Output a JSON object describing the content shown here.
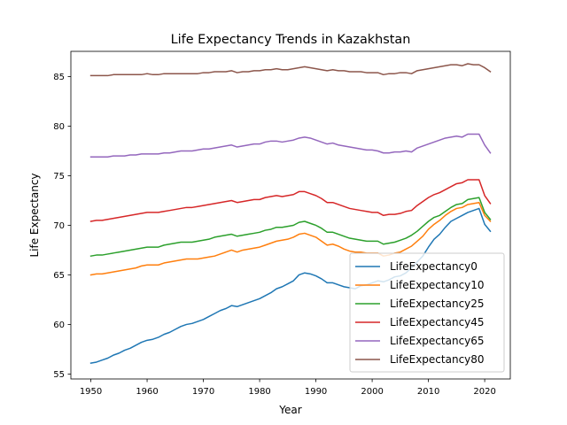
{
  "chart_data": {
    "type": "line",
    "title": "Life Expectancy Trends in Kazakhstan",
    "xlabel": "Year",
    "ylabel": "Life Expectancy",
    "xlim": [
      1946.45,
      2024.55
    ],
    "ylim": [
      54.5,
      87.55
    ],
    "xticks": [
      1950,
      1960,
      1970,
      1980,
      1990,
      2000,
      2010,
      2020
    ],
    "yticks": [
      55,
      60,
      65,
      70,
      75,
      80,
      85
    ],
    "legend_position": "lower-right",
    "grid": false,
    "x": [
      1950,
      1951,
      1952,
      1953,
      1954,
      1955,
      1956,
      1957,
      1958,
      1959,
      1960,
      1961,
      1962,
      1963,
      1964,
      1965,
      1966,
      1967,
      1968,
      1969,
      1970,
      1971,
      1972,
      1973,
      1974,
      1975,
      1976,
      1977,
      1978,
      1979,
      1980,
      1981,
      1982,
      1983,
      1984,
      1985,
      1986,
      1987,
      1988,
      1989,
      1990,
      1991,
      1992,
      1993,
      1994,
      1995,
      1996,
      1997,
      1998,
      1999,
      2000,
      2001,
      2002,
      2003,
      2004,
      2005,
      2006,
      2007,
      2008,
      2009,
      2010,
      2011,
      2012,
      2013,
      2014,
      2015,
      2016,
      2017,
      2018,
      2019,
      2020,
      2021
    ],
    "series": [
      {
        "name": "LifeExpectancy0",
        "color": "#1f77b4",
        "values": [
          56.1,
          56.2,
          56.4,
          56.6,
          56.9,
          57.1,
          57.4,
          57.6,
          57.9,
          58.2,
          58.4,
          58.5,
          58.7,
          59.0,
          59.2,
          59.5,
          59.8,
          60.0,
          60.1,
          60.3,
          60.5,
          60.8,
          61.1,
          61.4,
          61.6,
          61.9,
          61.8,
          62.0,
          62.2,
          62.4,
          62.6,
          62.9,
          63.2,
          63.6,
          63.8,
          64.1,
          64.4,
          65.0,
          65.2,
          65.1,
          64.9,
          64.6,
          64.2,
          64.2,
          64.0,
          63.8,
          63.7,
          63.6,
          63.9,
          64.0,
          64.2,
          64.4,
          64.3,
          64.5,
          64.8,
          64.9,
          65.2,
          65.7,
          66.3,
          66.9,
          67.8,
          68.6,
          69.1,
          69.8,
          70.4,
          70.7,
          71.0,
          71.3,
          71.5,
          71.7,
          70.1,
          69.4
        ]
      },
      {
        "name": "LifeExpectancy10",
        "color": "#ff7f0e",
        "values": [
          65.0,
          65.1,
          65.1,
          65.2,
          65.3,
          65.4,
          65.5,
          65.6,
          65.7,
          65.9,
          66.0,
          66.0,
          66.0,
          66.2,
          66.3,
          66.4,
          66.5,
          66.6,
          66.6,
          66.6,
          66.7,
          66.8,
          66.9,
          67.1,
          67.3,
          67.5,
          67.3,
          67.5,
          67.6,
          67.7,
          67.8,
          68.0,
          68.2,
          68.4,
          68.5,
          68.6,
          68.8,
          69.1,
          69.2,
          69.0,
          68.8,
          68.4,
          68.0,
          68.1,
          67.9,
          67.6,
          67.4,
          67.3,
          67.3,
          67.2,
          67.2,
          67.2,
          66.9,
          67.0,
          67.2,
          67.3,
          67.6,
          67.9,
          68.4,
          68.9,
          69.6,
          70.1,
          70.5,
          71.0,
          71.4,
          71.7,
          71.8,
          72.1,
          72.2,
          72.3,
          71.0,
          70.4
        ]
      },
      {
        "name": "LifeExpectancy25",
        "color": "#2ca02c",
        "values": [
          66.9,
          67.0,
          67.0,
          67.1,
          67.2,
          67.3,
          67.4,
          67.5,
          67.6,
          67.7,
          67.8,
          67.8,
          67.8,
          68.0,
          68.1,
          68.2,
          68.3,
          68.3,
          68.3,
          68.4,
          68.5,
          68.6,
          68.8,
          68.9,
          69.0,
          69.1,
          68.9,
          69.0,
          69.1,
          69.2,
          69.3,
          69.5,
          69.6,
          69.8,
          69.8,
          69.9,
          70.0,
          70.3,
          70.4,
          70.2,
          70.0,
          69.7,
          69.3,
          69.3,
          69.1,
          68.9,
          68.7,
          68.6,
          68.5,
          68.4,
          68.4,
          68.4,
          68.1,
          68.2,
          68.3,
          68.5,
          68.7,
          69.0,
          69.4,
          69.9,
          70.4,
          70.8,
          71.0,
          71.4,
          71.8,
          72.1,
          72.2,
          72.6,
          72.7,
          72.8,
          71.3,
          70.6
        ]
      },
      {
        "name": "LifeExpectancy45",
        "color": "#d62728",
        "values": [
          70.4,
          70.5,
          70.5,
          70.6,
          70.7,
          70.8,
          70.9,
          71.0,
          71.1,
          71.2,
          71.3,
          71.3,
          71.3,
          71.4,
          71.5,
          71.6,
          71.7,
          71.8,
          71.8,
          71.9,
          72.0,
          72.1,
          72.2,
          72.3,
          72.4,
          72.5,
          72.3,
          72.4,
          72.5,
          72.6,
          72.6,
          72.8,
          72.9,
          73.0,
          72.9,
          73.0,
          73.1,
          73.4,
          73.4,
          73.2,
          73.0,
          72.7,
          72.3,
          72.3,
          72.1,
          71.9,
          71.7,
          71.6,
          71.5,
          71.4,
          71.3,
          71.3,
          71.0,
          71.1,
          71.1,
          71.2,
          71.4,
          71.5,
          72.0,
          72.4,
          72.8,
          73.1,
          73.3,
          73.6,
          73.9,
          74.2,
          74.3,
          74.6,
          74.6,
          74.6,
          73.0,
          72.2
        ]
      },
      {
        "name": "LifeExpectancy65",
        "color": "#9467bd",
        "values": [
          76.9,
          76.9,
          76.9,
          76.9,
          77.0,
          77.0,
          77.0,
          77.1,
          77.1,
          77.2,
          77.2,
          77.2,
          77.2,
          77.3,
          77.3,
          77.4,
          77.5,
          77.5,
          77.5,
          77.6,
          77.7,
          77.7,
          77.8,
          77.9,
          78.0,
          78.1,
          77.9,
          78.0,
          78.1,
          78.2,
          78.2,
          78.4,
          78.5,
          78.5,
          78.4,
          78.5,
          78.6,
          78.8,
          78.9,
          78.8,
          78.6,
          78.4,
          78.2,
          78.3,
          78.1,
          78.0,
          77.9,
          77.8,
          77.7,
          77.6,
          77.6,
          77.5,
          77.3,
          77.3,
          77.4,
          77.4,
          77.5,
          77.4,
          77.8,
          78.0,
          78.2,
          78.4,
          78.6,
          78.8,
          78.9,
          79.0,
          78.9,
          79.2,
          79.2,
          79.2,
          78.1,
          77.3
        ]
      },
      {
        "name": "LifeExpectancy80",
        "color": "#8c564b",
        "values": [
          85.1,
          85.1,
          85.1,
          85.1,
          85.2,
          85.2,
          85.2,
          85.2,
          85.2,
          85.2,
          85.3,
          85.2,
          85.2,
          85.3,
          85.3,
          85.3,
          85.3,
          85.3,
          85.3,
          85.3,
          85.4,
          85.4,
          85.5,
          85.5,
          85.5,
          85.6,
          85.4,
          85.5,
          85.5,
          85.6,
          85.6,
          85.7,
          85.7,
          85.8,
          85.7,
          85.7,
          85.8,
          85.9,
          86.0,
          85.9,
          85.8,
          85.7,
          85.6,
          85.7,
          85.6,
          85.6,
          85.5,
          85.5,
          85.5,
          85.4,
          85.4,
          85.4,
          85.2,
          85.3,
          85.3,
          85.4,
          85.4,
          85.3,
          85.6,
          85.7,
          85.8,
          85.9,
          86.0,
          86.1,
          86.2,
          86.2,
          86.1,
          86.3,
          86.2,
          86.2,
          85.9,
          85.5
        ]
      }
    ]
  }
}
